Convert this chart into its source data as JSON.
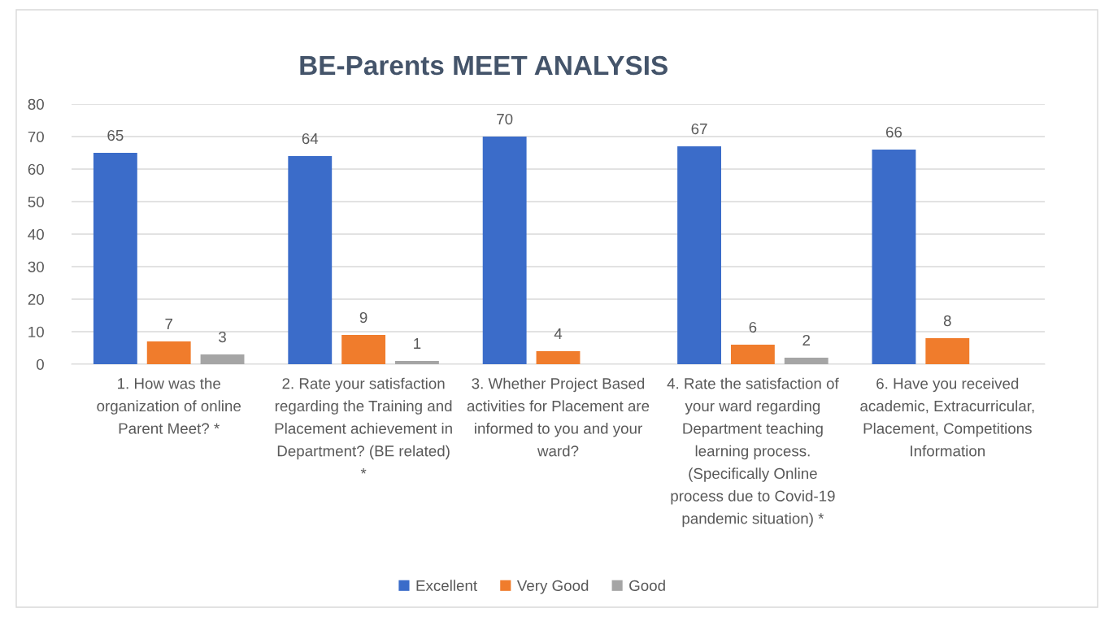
{
  "chart_data": {
    "type": "bar",
    "title": "BE-Parents MEET ANALYSIS",
    "categories": [
      "1. How was the organization of online Parent Meet? *",
      "2. Rate your satisfaction regarding the Training and Placement achievement in Department? (BE related) *",
      "3. Whether Project Based activities for Placement are informed to you and your ward?",
      "4. Rate the satisfaction of your ward regarding Department teaching learning process. (Specifically Online process due to Covid-19 pandemic situation) *",
      "6. Have you received academic, Extracurricular, Placement, Competitions Information"
    ],
    "series": [
      {
        "name": "Excellent",
        "color": "#3b6cc9",
        "values": [
          65,
          64,
          70,
          67,
          66
        ]
      },
      {
        "name": "Very Good",
        "color": "#f07c2c",
        "values": [
          7,
          9,
          4,
          6,
          8
        ]
      },
      {
        "name": "Good",
        "color": "#a5a5a5",
        "values": [
          3,
          1,
          null,
          2,
          null
        ]
      }
    ],
    "ylim": [
      0,
      80
    ],
    "yticks": [
      0,
      10,
      20,
      30,
      40,
      50,
      60,
      70,
      80
    ],
    "grid": "y",
    "legend": "bottom",
    "data_labels": true
  }
}
